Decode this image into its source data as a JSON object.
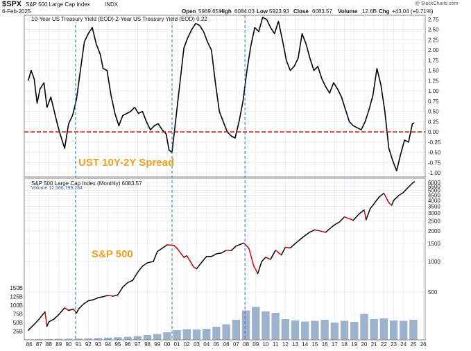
{
  "header": {
    "symbol": "$SPX",
    "name": "S&P 500 Large Cap Index",
    "exchange": "INDX",
    "watermark": "@ StockCharts.com",
    "date": "6-Feb-2025",
    "open_label": "Open",
    "open": "5969.65",
    "high_label": "High",
    "high": "6084.03",
    "low_label": "Low",
    "low": "5923.93",
    "close_label": "Close",
    "close": "6083.57",
    "volume_label": "Volume",
    "volume": "12.6B",
    "chg_label": "Chg",
    "chg": "+43.04 (+0.71%)"
  },
  "colors": {
    "background": "#ffffff",
    "zero_line": "#cc0000",
    "marker_lines": "#2f6fb0",
    "annotation": "#f0a020",
    "price_line": "#000000",
    "price_down": "#cc0000",
    "volume_bars": "#8ba6c2",
    "grid": "#dde3ea",
    "border": "#8a8a8a"
  },
  "chart_data": [
    {
      "type": "line",
      "legend": "10-Year US Treasury Yield (EOD)-2-Year US Treasury Yield (EOD) 0.22",
      "annotation": "UST 10Y-2Y Spread",
      "reference_line": 0.0,
      "ylim": [
        -1.1,
        2.85
      ],
      "yticks": [
        2.75,
        2.5,
        2.25,
        2.0,
        1.75,
        1.5,
        1.25,
        1.0,
        0.75,
        0.5,
        0.25,
        0.0,
        -0.25,
        -0.5,
        -0.75,
        -1.0
      ],
      "ytick_labels": [
        "2.75",
        "2.50",
        "2.25",
        "2.00",
        "1.75",
        "1.50",
        "1.25",
        "1.00",
        "0.75",
        "0.50",
        "0.25",
        "0.00",
        "-0.25",
        "-0.50",
        "-0.75",
        "-1.00"
      ],
      "grid": true,
      "x": [
        1985.9,
        1986.2,
        1986.5,
        1986.8,
        1987.1,
        1987.5,
        1987.8,
        1988.2,
        1988.5,
        1988.9,
        1989.2,
        1989.6,
        1990.0,
        1990.4,
        1990.8,
        1991.2,
        1991.6,
        1992.0,
        1992.4,
        1992.8,
        1993.2,
        1993.5,
        1993.9,
        1994.3,
        1994.7,
        1995.1,
        1995.5,
        1995.9,
        1996.3,
        1996.7,
        1997.1,
        1997.5,
        1997.9,
        1998.3,
        1998.7,
        1999.1,
        1999.5,
        1999.9,
        2000.2,
        2000.5,
        2000.9,
        2001.3,
        2001.7,
        2002.1,
        2002.5,
        2002.9,
        2003.3,
        2003.7,
        2004.1,
        2004.5,
        2004.9,
        2005.3,
        2005.7,
        2006.1,
        2006.5,
        2006.9,
        2007.3,
        2007.7,
        2008.1,
        2008.5,
        2008.9,
        2009.3,
        2009.7,
        2010.1,
        2010.5,
        2010.9,
        2011.3,
        2011.7,
        2012.1,
        2012.5,
        2012.9,
        2013.3,
        2013.7,
        2014.1,
        2014.5,
        2014.9,
        2015.3,
        2015.7,
        2016.1,
        2016.5,
        2016.9,
        2017.3,
        2017.7,
        2018.1,
        2018.5,
        2018.9,
        2019.3,
        2019.7,
        2020.1,
        2020.5,
        2020.9,
        2021.3,
        2021.7,
        2022.1,
        2022.5,
        2022.9,
        2023.3,
        2023.7,
        2024.1,
        2024.5,
        2024.9,
        2025.1
      ],
      "values": [
        1.25,
        1.5,
        1.3,
        0.7,
        1.05,
        1.2,
        0.6,
        0.85,
        0.55,
        0.15,
        -0.1,
        -0.4,
        0.2,
        0.4,
        0.8,
        1.5,
        2.2,
        2.4,
        2.55,
        2.15,
        1.9,
        1.55,
        1.5,
        0.9,
        0.45,
        0.15,
        0.4,
        0.45,
        0.5,
        0.6,
        0.45,
        0.5,
        0.25,
        0.05,
        0.15,
        0.2,
        0.05,
        -0.05,
        -0.45,
        -0.5,
        0.35,
        1.2,
        2.05,
        2.3,
        2.5,
        2.65,
        2.6,
        2.45,
        2.2,
        2.0,
        1.2,
        0.5,
        0.25,
        0.0,
        -0.1,
        -0.15,
        0.25,
        0.75,
        1.5,
        2.1,
        2.55,
        2.45,
        2.8,
        2.75,
        2.55,
        2.4,
        2.7,
        2.25,
        1.75,
        1.5,
        1.6,
        1.8,
        2.4,
        2.15,
        1.8,
        1.5,
        1.6,
        1.3,
        1.1,
        0.95,
        1.2,
        1.05,
        0.85,
        0.55,
        0.25,
        0.15,
        0.1,
        0.05,
        0.25,
        0.55,
        0.9,
        1.55,
        1.15,
        0.5,
        -0.4,
        -0.7,
        -0.95,
        -0.55,
        -0.2,
        -0.25,
        0.2,
        0.22
      ]
    },
    {
      "type": "line",
      "legend": "S&P 500 Large Cap Index (Monthly) 6083.57",
      "annotation": "S&P 500",
      "scale": "log",
      "ylim": [
        180,
        6600
      ],
      "yticks": [
        6000,
        5500,
        5000,
        4500,
        4000,
        3500,
        3000,
        2500,
        2000,
        1500,
        1000,
        500
      ],
      "ytick_labels": [
        "6000",
        "5500",
        "5000",
        "4500",
        "4000",
        "3500",
        "3000",
        "2500",
        "2000",
        "1500",
        "1000",
        "500"
      ],
      "x": [
        1985.9,
        1986.5,
        1987.0,
        1987.6,
        1987.8,
        1988.0,
        1988.5,
        1989.0,
        1989.6,
        1990.0,
        1990.5,
        1990.8,
        1991.0,
        1991.5,
        1992.0,
        1992.5,
        1993.0,
        1993.5,
        1994.0,
        1994.5,
        1995.0,
        1995.5,
        1996.0,
        1996.5,
        1997.0,
        1997.5,
        1998.0,
        1998.6,
        1999.0,
        1999.5,
        2000.0,
        2000.7,
        2001.0,
        2001.7,
        2002.0,
        2002.7,
        2003.0,
        2003.5,
        2004.0,
        2004.5,
        2005.0,
        2005.5,
        2006.0,
        2006.5,
        2007.0,
        2007.8,
        2008.3,
        2008.8,
        2009.2,
        2009.6,
        2010.0,
        2010.5,
        2011.0,
        2011.6,
        2012.0,
        2012.5,
        2013.0,
        2013.5,
        2014.0,
        2014.5,
        2015.0,
        2015.7,
        2016.1,
        2016.5,
        2017.0,
        2017.5,
        2018.0,
        2018.9,
        2019.5,
        2020.0,
        2020.2,
        2020.6,
        2021.0,
        2021.5,
        2022.0,
        2022.5,
        2022.8,
        2023.0,
        2023.5,
        2024.0,
        2024.5,
        2024.9,
        2025.1
      ],
      "values": [
        210,
        240,
        270,
        320,
        230,
        255,
        270,
        300,
        350,
        330,
        340,
        310,
        340,
        380,
        410,
        420,
        440,
        450,
        465,
        455,
        470,
        560,
        620,
        650,
        780,
        900,
        970,
        1000,
        1250,
        1350,
        1460,
        1440,
        1350,
        1100,
        1140,
        880,
        850,
        980,
        1120,
        1120,
        1190,
        1210,
        1290,
        1280,
        1420,
        1520,
        1350,
        900,
        760,
        1000,
        1100,
        1050,
        1290,
        1160,
        1380,
        1360,
        1500,
        1650,
        1800,
        1950,
        2050,
        1980,
        1940,
        2100,
        2300,
        2450,
        2750,
        2550,
        2950,
        3220,
        2580,
        3300,
        3700,
        4300,
        4700,
        3800,
        3580,
        4000,
        4450,
        4800,
        5400,
        5900,
        6083.57
      ]
    },
    {
      "type": "bar",
      "legend": "Volume 12,566,799,264",
      "ylim": [
        0,
        160
      ],
      "yticks": [
        150,
        125,
        100,
        75,
        50,
        25
      ],
      "ytick_labels": [
        "150B",
        "125B",
        "100B",
        "75B",
        "50B",
        "25B"
      ],
      "x": [
        1986,
        1987,
        1988,
        1989,
        1990,
        1991,
        1992,
        1993,
        1994,
        1995,
        1996,
        1997,
        1998,
        1999,
        2000,
        2001,
        2002,
        2003,
        2004,
        2005,
        2006,
        2007,
        2008,
        2009,
        2010,
        2011,
        2012,
        2013,
        2014,
        2015,
        2016,
        2017,
        2018,
        2019,
        2020,
        2021,
        2022,
        2023,
        2024,
        2025
      ],
      "values": [
        1.5,
        2.5,
        2.5,
        3,
        3.5,
        4,
        4.5,
        5.5,
        6.5,
        7.5,
        9,
        11,
        14,
        17,
        22,
        28,
        31,
        30,
        32,
        38,
        45,
        58,
        85,
        95,
        82,
        78,
        60,
        56,
        53,
        55,
        58,
        50,
        55,
        52,
        75,
        60,
        62,
        56,
        55,
        58
      ]
    },
    {
      "type": "axis",
      "xtick_labels": [
        "86",
        "87",
        "88",
        "89",
        "90",
        "91",
        "92",
        "93",
        "94",
        "95",
        "96",
        "97",
        "98",
        "99",
        "00",
        "01",
        "02",
        "03",
        "04",
        "05",
        "06",
        "07",
        "08",
        "09",
        "10",
        "11",
        "12",
        "13",
        "14",
        "15",
        "16",
        "17",
        "18",
        "19",
        "20",
        "21",
        "22",
        "23",
        "24",
        "25",
        "26"
      ],
      "marker_years": [
        1990.7,
        2000.5,
        2007.9
      ]
    }
  ]
}
